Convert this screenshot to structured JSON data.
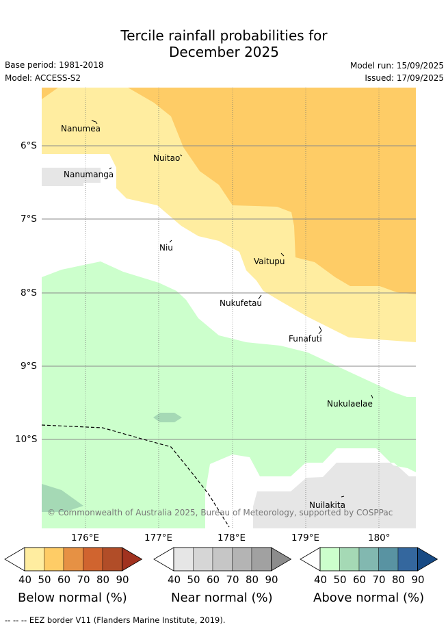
{
  "title_line1": "Tercile rainfall probabilities for",
  "title_line2": "December 2025",
  "base_period": "Base period: 1981-2018",
  "model": "Model: ACCESS-S2",
  "model_run": "Model run: 15/09/2025",
  "issued": "Issued: 17/09/2025",
  "lat_ticks": [
    "6°S",
    "7°S",
    "8°S",
    "9°S",
    "10°S"
  ],
  "lon_ticks": [
    "176°E",
    "177°E",
    "178°E",
    "179°E",
    "180°"
  ],
  "islands": {
    "nanumea": "Nanumea",
    "nuitao": "Nuitao",
    "nanumanga": "Nanumanga",
    "niu": "Niu",
    "vaitupu": "Vaitupu",
    "nukufetau": "Nukufetau",
    "funafuti": "Funafuti",
    "nukulaelae": "Nukulaelae",
    "nuilakita": "Nuilakita"
  },
  "copyright": "© Commonwealth of Australia 2025, Bureau of Meteorology, supported by COSPPac",
  "colorbars": {
    "below": {
      "title": "Below normal (%)",
      "colors": [
        "#ffffff",
        "#ffeda0",
        "#fecc66",
        "#e69144",
        "#d0642f",
        "#b14d28",
        "#a1321f"
      ],
      "ticks": [
        "40",
        "50",
        "60",
        "70",
        "80",
        "90"
      ]
    },
    "near": {
      "title": "Near normal (%)",
      "colors": [
        "#ffffff",
        "#e6e6e6",
        "#d6d6d6",
        "#c6c6c6",
        "#b4b4b4",
        "#a1a1a1",
        "#8c8c8c"
      ],
      "ticks": [
        "40",
        "50",
        "60",
        "70",
        "80",
        "90"
      ]
    },
    "above": {
      "title": "Above normal (%)",
      "colors": [
        "#ffffff",
        "#ccffcc",
        "#a5d9b5",
        "#82b8b0",
        "#5993a2",
        "#34679e",
        "#174a84"
      ],
      "ticks": [
        "40",
        "50",
        "60",
        "70",
        "80",
        "90"
      ]
    }
  },
  "footer": "-- -- -- EEZ border V11 (Flanders Marine Institute, 2019).",
  "colors": {
    "below_50": "#ffeda0",
    "below_60": "#fecc66",
    "near_50": "#e6e6e6",
    "above_50": "#ccffcc",
    "above_60": "#a5d9b5"
  }
}
